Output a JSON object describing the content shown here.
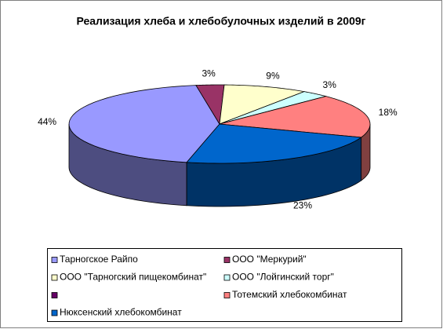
{
  "chart_data": {
    "type": "pie3d",
    "title": "Реализация хлеба и хлебобулочных изделий в 2009г",
    "categories": [
      "Тарногское Райпо",
      "ООО \"Меркурий\"",
      "ООО \"Тарногский пищекомбинат\"",
      "ООО \"Лойгинский торг\"",
      null,
      "Тотемский хлебокомбинат",
      "Нюксенский хлебокомбинат"
    ],
    "values": [
      44,
      3,
      9,
      3,
      0,
      18,
      23
    ],
    "value_labels": [
      "44%",
      "3%",
      "9%",
      "3%",
      null,
      "18%",
      "23%"
    ],
    "colors": [
      "#9999ff",
      "#993366",
      "#ffffcc",
      "#ccffff",
      "#660066",
      "#ff8080",
      "#0066cc"
    ]
  }
}
